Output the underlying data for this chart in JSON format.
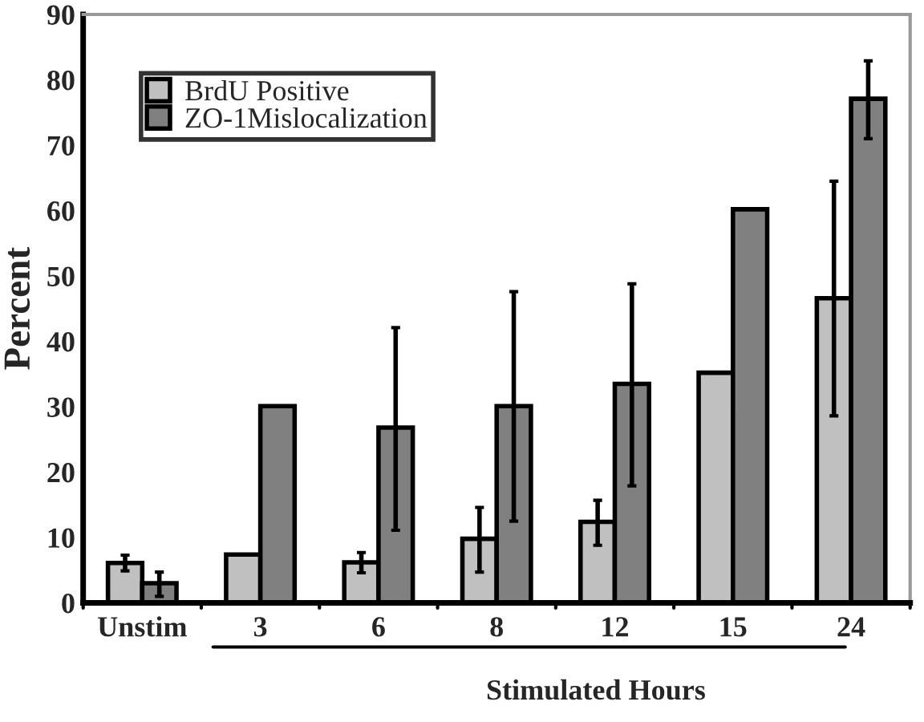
{
  "chart_data": {
    "type": "bar",
    "xlabel": "Stimulated Hours",
    "ylabel": "Percent",
    "categories": [
      "Unstim",
      "3",
      "6",
      "8",
      "12",
      "15",
      "24"
    ],
    "series": [
      {
        "name": "BrdU Positive",
        "color": "#c0c0c0",
        "values": [
          6.1,
          7.4,
          6.2,
          9.8,
          12.4,
          35.2,
          46.6
        ],
        "errors": [
          [
            4.9,
            7.3
          ],
          null,
          [
            4.6,
            7.7
          ],
          [
            4.7,
            14.6
          ],
          [
            8.8,
            15.7
          ],
          null,
          [
            28.6,
            64.5
          ]
        ]
      },
      {
        "name": "ZO-1Mislocalization",
        "color": "#808080",
        "values": [
          3.0,
          30.1,
          26.8,
          30.1,
          33.5,
          60.2,
          77.1
        ],
        "errors": [
          [
            1.0,
            4.7
          ],
          null,
          [
            11.1,
            42.1
          ],
          [
            12.5,
            47.6
          ],
          [
            17.9,
            48.8
          ],
          null,
          [
            71.0,
            82.9
          ]
        ]
      }
    ],
    "ylim": [
      0,
      90
    ],
    "yticks": [
      0,
      10,
      20,
      30,
      40,
      50,
      60,
      70,
      80,
      90
    ],
    "grid": false,
    "legend": "top left"
  }
}
